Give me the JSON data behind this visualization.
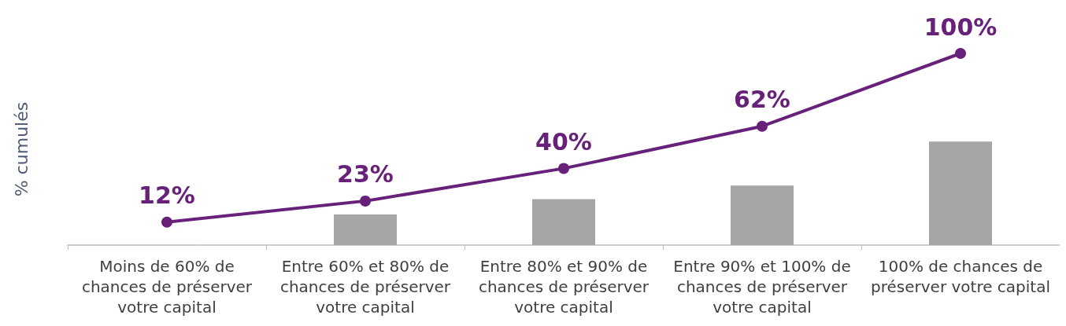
{
  "chart_data": {
    "type": "bar",
    "ylabel": "% cumulés",
    "grid": false,
    "tick_labels": "x",
    "categories": [
      "Moins de 60% de\nchances de préserver\nvotre capital",
      "Entre 60% et 80% de\nchances de préserver\nvotre capital",
      "Entre 80% et 90% de\nchances de préserver\nvotre capital",
      "Entre 90% et 100% de\nchances de préserver\nvotre capital",
      "100% de chances de\npréserver votre capital"
    ],
    "series": [
      {
        "color": "#a6a6a6",
        "values": [
          null,
          16,
          24,
          31,
          54
        ]
      },
      {
        "type": "line",
        "color": "#68217a",
        "marker": "circle",
        "line_style": "solid",
        "values": [
          12,
          23,
          40,
          62,
          100
        ],
        "value_labels": [
          "12%",
          "23%",
          "40%",
          "62%",
          "100%"
        ]
      }
    ]
  }
}
